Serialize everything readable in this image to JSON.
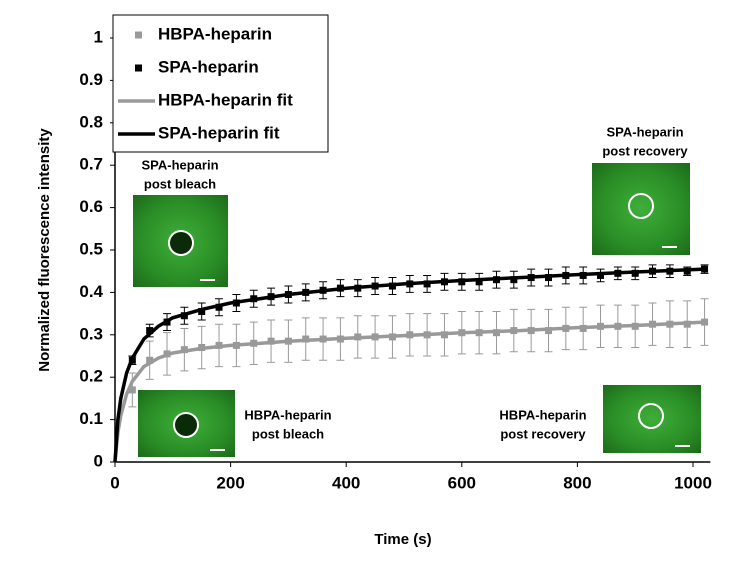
{
  "chart_data": {
    "type": "scatter",
    "y_label": "Normalized fluorescence intensity",
    "x_label": "Time (s)",
    "xlim": [
      0,
      1030
    ],
    "ylim": [
      0,
      1
    ],
    "xticks": [
      0,
      200,
      400,
      600,
      800,
      1000
    ],
    "yticks": [
      0,
      0.1,
      0.2,
      0.3,
      0.4,
      0.5,
      0.6,
      0.7,
      0.8,
      0.9,
      1
    ],
    "grid": false,
    "legend": "top-left",
    "series": [
      {
        "name": "HBPA-heparin",
        "kind": "markers",
        "color": "#999999",
        "x": [
          30,
          60,
          90,
          120,
          150,
          180,
          210,
          240,
          270,
          300,
          330,
          360,
          390,
          420,
          450,
          480,
          510,
          540,
          570,
          600,
          630,
          660,
          690,
          720,
          750,
          780,
          810,
          840,
          870,
          900,
          930,
          960,
          990,
          1020
        ],
        "values": [
          0.17,
          0.24,
          0.255,
          0.265,
          0.27,
          0.275,
          0.275,
          0.28,
          0.285,
          0.285,
          0.29,
          0.29,
          0.29,
          0.295,
          0.295,
          0.295,
          0.3,
          0.3,
          0.3,
          0.305,
          0.305,
          0.305,
          0.31,
          0.31,
          0.31,
          0.315,
          0.315,
          0.32,
          0.32,
          0.32,
          0.325,
          0.325,
          0.325,
          0.33
        ],
        "errors": [
          0.04,
          0.045,
          0.05,
          0.05,
          0.05,
          0.05,
          0.05,
          0.05,
          0.05,
          0.05,
          0.05,
          0.05,
          0.05,
          0.05,
          0.05,
          0.05,
          0.05,
          0.05,
          0.05,
          0.05,
          0.05,
          0.05,
          0.05,
          0.05,
          0.05,
          0.05,
          0.05,
          0.05,
          0.05,
          0.05,
          0.05,
          0.055,
          0.055,
          0.055
        ]
      },
      {
        "name": "SPA-heparin",
        "kind": "markers",
        "color": "#000000",
        "x": [
          30,
          60,
          90,
          120,
          150,
          180,
          210,
          240,
          270,
          300,
          330,
          360,
          390,
          420,
          450,
          480,
          510,
          540,
          570,
          600,
          630,
          660,
          690,
          720,
          750,
          780,
          810,
          840,
          870,
          900,
          930,
          960,
          990,
          1020
        ],
        "values": [
          0.24,
          0.31,
          0.33,
          0.345,
          0.355,
          0.365,
          0.375,
          0.385,
          0.39,
          0.395,
          0.4,
          0.405,
          0.41,
          0.41,
          0.415,
          0.415,
          0.42,
          0.42,
          0.425,
          0.425,
          0.425,
          0.43,
          0.43,
          0.435,
          0.435,
          0.44,
          0.44,
          0.44,
          0.445,
          0.445,
          0.45,
          0.45,
          0.45,
          0.455
        ],
        "errors": [
          0.01,
          0.015,
          0.02,
          0.02,
          0.02,
          0.02,
          0.02,
          0.02,
          0.02,
          0.02,
          0.02,
          0.02,
          0.02,
          0.02,
          0.02,
          0.02,
          0.02,
          0.02,
          0.02,
          0.02,
          0.02,
          0.02,
          0.02,
          0.02,
          0.02,
          0.02,
          0.02,
          0.015,
          0.015,
          0.015,
          0.015,
          0.015,
          0.01,
          0.01
        ]
      },
      {
        "name": "HBPA-heparin fit",
        "kind": "line",
        "color": "#999999",
        "x": [
          0,
          5,
          10,
          20,
          30,
          50,
          75,
          100,
          150,
          200,
          300,
          400,
          500,
          600,
          700,
          800,
          900,
          1020
        ],
        "values": [
          0,
          0.07,
          0.11,
          0.16,
          0.19,
          0.225,
          0.245,
          0.257,
          0.268,
          0.275,
          0.285,
          0.292,
          0.298,
          0.305,
          0.31,
          0.317,
          0.322,
          0.33
        ]
      },
      {
        "name": "SPA-heparin fit",
        "kind": "line",
        "color": "#000000",
        "x": [
          0,
          5,
          10,
          20,
          30,
          50,
          75,
          100,
          150,
          200,
          300,
          400,
          500,
          600,
          700,
          800,
          900,
          1020
        ],
        "values": [
          0,
          0.1,
          0.15,
          0.21,
          0.245,
          0.29,
          0.32,
          0.34,
          0.36,
          0.375,
          0.395,
          0.41,
          0.42,
          0.428,
          0.435,
          0.442,
          0.448,
          0.455
        ]
      }
    ],
    "annotations": [
      {
        "lines": [
          "SPA-heparin",
          "post bleach"
        ]
      },
      {
        "lines": [
          "SPA-heparin",
          "post recovery"
        ]
      },
      {
        "lines": [
          "HBPA-heparin",
          "post bleach"
        ]
      },
      {
        "lines": [
          "HBPA-heparin",
          "post recovery"
        ]
      }
    ]
  }
}
